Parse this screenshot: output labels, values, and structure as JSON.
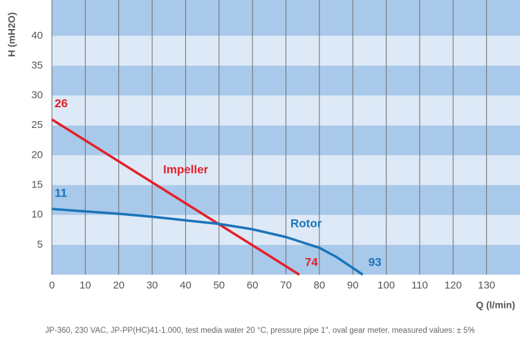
{
  "chart_data": {
    "type": "line",
    "y_label": "H (mH2O)",
    "x_label": "Q (l/min)",
    "footnote": "JP-360, 230 VAC, JP-PP(HC)41-1.000, test media water 20 °C, pressure pipe 1\", oval gear meter, measured values: ± 5%",
    "xlim": [
      0,
      140
    ],
    "xticks": [
      0,
      10,
      20,
      30,
      40,
      50,
      60,
      70,
      80,
      90,
      100,
      110,
      120,
      130
    ],
    "ylim": [
      0,
      46
    ],
    "yticks": [
      5,
      10,
      15,
      20,
      25,
      30,
      35,
      40
    ],
    "grid": true,
    "band_colors": [
      "#a9c9ea",
      "#dde9f7"
    ],
    "series": [
      {
        "name": "Impeller",
        "color": "#e3202a",
        "x": [
          0,
          74
        ],
        "values": [
          26,
          0
        ]
      },
      {
        "name": "Rotor",
        "color": "#1a74ba",
        "x": [
          0,
          10,
          20,
          30,
          40,
          50,
          60,
          70,
          80,
          85,
          93
        ],
        "values": [
          11,
          10.6,
          10.2,
          9.7,
          9.1,
          8.5,
          7.6,
          6.3,
          4.5,
          3,
          0
        ]
      }
    ]
  }
}
